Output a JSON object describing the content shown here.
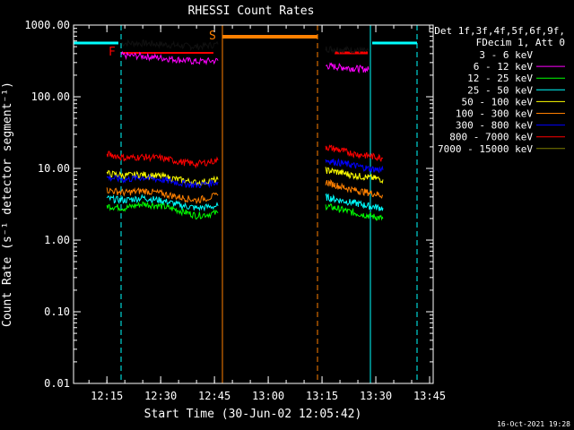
{
  "chart_data": {
    "type": "line",
    "title": "RHESSI Count Rates",
    "xlabel": "Start Time (30-Jun-02 12:05:42)",
    "ylabel": "Count Rate (s⁻¹ detector segment⁻¹)",
    "yscale": "log",
    "ylim": [
      0.01,
      1000
    ],
    "xlim": [
      "12:05:42",
      "13:46:00"
    ],
    "x_ticks": [
      "12:15",
      "12:30",
      "12:45",
      "13:00",
      "13:15",
      "13:30",
      "13:45"
    ],
    "y_ticks": [
      "0.01",
      "0.10",
      "1.00",
      "10.00",
      "100.00",
      "1000.00"
    ],
    "grid": false,
    "legend_position": "right",
    "legend_header": [
      "Det 1f,3f,4f,5f,6f,9f,",
      "FDecim 1, Att 0"
    ],
    "series": [
      {
        "name": "3 - 6 keV",
        "color": "#000000",
        "segments": [
          {
            "x": [
              "12:19",
              "12:25",
              "12:30",
              "12:35",
              "12:40",
              "12:46"
            ],
            "y": [
              560,
              560,
              540,
              520,
              500,
              540
            ]
          },
          {
            "x": [
              "13:16",
              "13:20",
              "13:24",
              "13:28"
            ],
            "y": [
              470,
              460,
              450,
              430
            ]
          }
        ]
      },
      {
        "name": "6 - 12 keV",
        "color": "#ff00ff",
        "segments": [
          {
            "x": [
              "12:19",
              "12:25",
              "12:30",
              "12:35",
              "12:40",
              "12:46"
            ],
            "y": [
              380,
              370,
              350,
              330,
              310,
              320
            ]
          },
          {
            "x": [
              "13:16",
              "13:20",
              "13:24",
              "13:28"
            ],
            "y": [
              270,
              260,
              250,
              240
            ]
          }
        ]
      },
      {
        "name": "12 - 25 keV",
        "color": "#00ff00",
        "segments": [
          {
            "x": [
              "12:15",
              "12:20",
              "12:25",
              "12:30",
              "12:35",
              "12:40",
              "12:46"
            ],
            "y": [
              3.0,
              2.8,
              3.2,
              3.0,
              2.6,
              2.2,
              2.4
            ]
          },
          {
            "x": [
              "13:16",
              "13:20",
              "13:24",
              "13:28",
              "13:32"
            ],
            "y": [
              3.0,
              2.7,
              2.4,
              2.2,
              2.0
            ]
          }
        ]
      },
      {
        "name": "25 - 50 keV",
        "color": "#00ffff",
        "segments": [
          {
            "x": [
              "12:15",
              "12:20",
              "12:25",
              "12:30",
              "12:35",
              "12:40",
              "12:46"
            ],
            "y": [
              3.8,
              3.6,
              3.9,
              3.6,
              3.1,
              2.8,
              3.0
            ]
          },
          {
            "x": [
              "13:16",
              "13:20",
              "13:24",
              "13:28",
              "13:32"
            ],
            "y": [
              4.0,
              3.6,
              3.3,
              3.0,
              2.8
            ]
          }
        ]
      },
      {
        "name": "50 - 100 keV",
        "color": "#ffff00",
        "segments": [
          {
            "x": [
              "12:15",
              "12:20",
              "12:25",
              "12:30",
              "12:35",
              "12:40",
              "12:46"
            ],
            "y": [
              8.5,
              8.0,
              8.2,
              7.8,
              7.0,
              6.3,
              7.0
            ]
          },
          {
            "x": [
              "13:16",
              "13:20",
              "13:24",
              "13:28",
              "13:32"
            ],
            "y": [
              9.5,
              8.8,
              8.0,
              7.5,
              7.0
            ]
          }
        ]
      },
      {
        "name": "100 - 300 keV",
        "color": "#ff8000",
        "segments": [
          {
            "x": [
              "12:15",
              "12:20",
              "12:25",
              "12:30",
              "12:35",
              "12:40",
              "12:46"
            ],
            "y": [
              5.0,
              4.6,
              4.9,
              4.5,
              4.0,
              3.6,
              4.2
            ]
          },
          {
            "x": [
              "13:16",
              "13:20",
              "13:24",
              "13:28",
              "13:32"
            ],
            "y": [
              6.5,
              5.6,
              5.0,
              4.6,
              4.2
            ]
          }
        ]
      },
      {
        "name": "300 - 800 keV",
        "color": "#0000ff",
        "segments": [
          {
            "x": [
              "12:15",
              "12:20",
              "12:25",
              "12:30",
              "12:35",
              "12:40",
              "12:46"
            ],
            "y": [
              7.5,
              7.0,
              7.5,
              7.0,
              6.3,
              5.8,
              6.5
            ]
          },
          {
            "x": [
              "13:16",
              "13:20",
              "13:24",
              "13:28",
              "13:32"
            ],
            "y": [
              13,
              12,
              11,
              10,
              9.5
            ]
          }
        ]
      },
      {
        "name": "800 - 7000 keV",
        "color": "#ff0000",
        "segments": [
          {
            "x": [
              "12:15",
              "12:20",
              "12:25",
              "12:30",
              "12:35",
              "12:40",
              "12:46"
            ],
            "y": [
              16,
              14,
              14.5,
              14,
              12.5,
              11.5,
              13
            ]
          },
          {
            "x": [
              "13:16",
              "13:20",
              "13:24",
              "13:28",
              "13:32"
            ],
            "y": [
              20,
              18,
              16,
              15,
              14
            ]
          }
        ]
      },
      {
        "name": "7000 - 15000 keV",
        "color": "#808000",
        "segments": []
      }
    ],
    "annotations": {
      "markers": [
        {
          "label": "F",
          "color": "#ff0000"
        },
        {
          "label": "S",
          "color": "#ff8000"
        }
      ]
    }
  },
  "footer": {
    "timestamp": "16-Oct-2021 19:28"
  }
}
